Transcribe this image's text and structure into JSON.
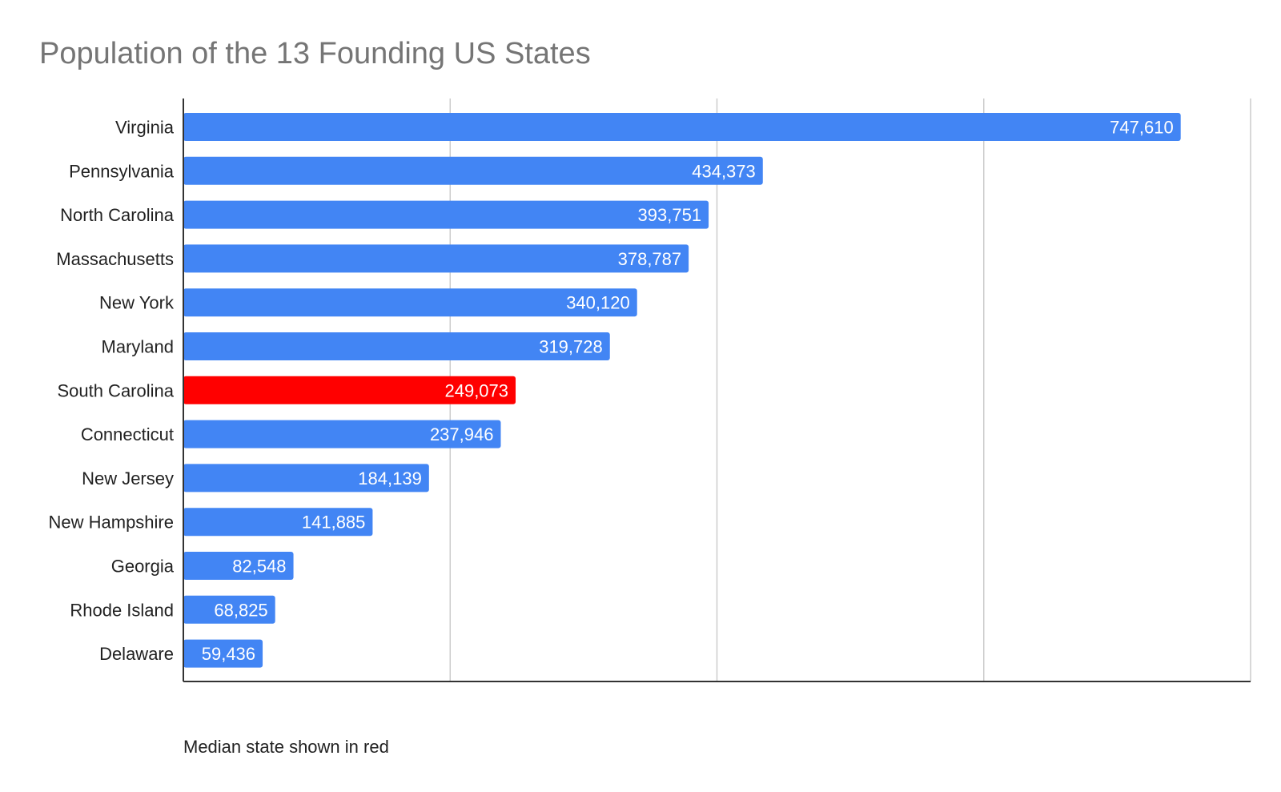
{
  "chart_data": {
    "type": "bar",
    "orientation": "horizontal",
    "title": "Population of the 13 Founding US States",
    "xlabel": "",
    "ylabel": "",
    "xlim": [
      0,
      800000
    ],
    "gridlines": [
      200000,
      400000,
      600000,
      800000
    ],
    "grid": true,
    "tick_labels_shown": false,
    "categories": [
      "Virginia",
      "Pennsylvania",
      "North Carolina",
      "Massachusetts",
      "New York",
      "Maryland",
      "South Carolina",
      "Connecticut",
      "New Jersey",
      "New Hampshire",
      "Georgia",
      "Rhode Island",
      "Delaware"
    ],
    "values": [
      747610,
      434373,
      393751,
      378787,
      340120,
      319728,
      249073,
      237946,
      184139,
      141885,
      82548,
      68825,
      59436
    ],
    "value_labels": [
      "747,610",
      "434,373",
      "393,751",
      "378,787",
      "340,120",
      "319,728",
      "249,073",
      "237,946",
      "184,139",
      "141,885",
      "82,548",
      "68,825",
      "59,436"
    ],
    "highlight_index": 6,
    "colors": {
      "bar": "#4285f4",
      "highlight": "#ff0000",
      "grid": "#cccccc",
      "axis": "#333333"
    },
    "annotation": "Median state shown in red"
  }
}
